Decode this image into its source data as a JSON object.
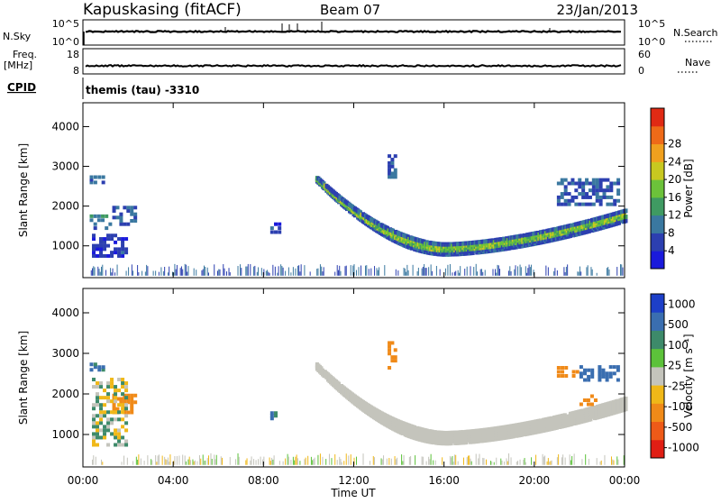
{
  "header": {
    "station": "Kapuskasing (fitACF)",
    "beam": "Beam 07",
    "date": "23/Jan/2013"
  },
  "top_panels": {
    "nsky_label": "N.Sky",
    "nsky_ticks": [
      "10^5",
      "10^0"
    ],
    "nsearch_label": "N.Search",
    "nsearch_ticks": [
      "10^5",
      "10^0"
    ],
    "freq_label": "Freq.",
    "freq_unit": "[MHz]",
    "freq_ticks": [
      "18",
      "8"
    ],
    "nave_label": "Nave",
    "nave_ticks": [
      "60",
      "0"
    ],
    "cpid_label": "CPID",
    "cpid_value": "themis (tau) -3310"
  },
  "chart_data": [
    {
      "type": "heatmap",
      "name": "power",
      "ylabel": "Slant Range [km]",
      "y_ticks": [
        1000,
        2000,
        3000,
        4000
      ],
      "ylim": [
        200,
        4600
      ],
      "xlim": [
        0,
        24
      ],
      "x_ticks": [
        "00:00",
        "04:00",
        "08:00",
        "12:00",
        "16:00",
        "20:00",
        "00:00"
      ],
      "colorbar_label": "Power [dB]",
      "colorbar_ticks": [
        "4",
        "8",
        "12",
        "16",
        "20",
        "24",
        "28"
      ],
      "colorbar_colors": [
        "#1a1adc",
        "#2c3fb0",
        "#3a78a0",
        "#3f9a62",
        "#6cc23a",
        "#c8c820",
        "#f0a01e",
        "#ee6a18",
        "#e02a14"
      ],
      "features": [
        {
          "kind": "ground_band",
          "x": [
            0.3,
            24
          ],
          "y": [
            250,
            330
          ],
          "value": 6
        },
        {
          "kind": "arc",
          "x": [
            10.3,
            24
          ],
          "y_start": 2650,
          "y_min": 900,
          "x_min": 16,
          "y_end": 1750,
          "value": 16
        },
        {
          "kind": "patch",
          "x": [
            0.3,
            1.3
          ],
          "y": [
            1400,
            1800
          ],
          "value": 10
        },
        {
          "kind": "patch",
          "x": [
            0.3,
            1.0
          ],
          "y": [
            2550,
            2750
          ],
          "value": 8
        },
        {
          "kind": "patch",
          "x": [
            1.3,
            2.4
          ],
          "y": [
            1500,
            2000
          ],
          "value": 8
        },
        {
          "kind": "patch",
          "x": [
            0.4,
            2.0
          ],
          "y": [
            700,
            1300
          ],
          "value": 6
        },
        {
          "kind": "patch",
          "x": [
            13.5,
            13.9
          ],
          "y": [
            2600,
            3300
          ],
          "value": 8
        },
        {
          "kind": "patch",
          "x": [
            21,
            23.8
          ],
          "y": [
            2000,
            2700
          ],
          "value": 8
        },
        {
          "kind": "patch",
          "x": [
            8.3,
            8.8
          ],
          "y": [
            1300,
            1600
          ],
          "value": 6
        }
      ]
    },
    {
      "type": "heatmap",
      "name": "velocity",
      "ylabel": "Slant Range [km]",
      "y_ticks": [
        1000,
        2000,
        3000,
        4000
      ],
      "ylim": [
        200,
        4600
      ],
      "xlim": [
        0,
        24
      ],
      "x_ticks": [
        "00:00",
        "04:00",
        "08:00",
        "12:00",
        "16:00",
        "20:00",
        "00:00"
      ],
      "xlabel": "Time UT",
      "colorbar_label": "Velocity [m s⁻¹]",
      "colorbar_ticks": [
        "1000",
        "500",
        "100",
        "25",
        "-25",
        "-100",
        "-500",
        "-1000"
      ],
      "colorbar_colors": [
        "#1d3fc8",
        "#3a6eb0",
        "#3d8a6a",
        "#5cc23a",
        "#c4c4bc",
        "#f0b818",
        "#f08a18",
        "#ee5a18",
        "#e01e14"
      ],
      "features": [
        {
          "kind": "ground_band",
          "x": [
            0.3,
            24
          ],
          "y": [
            250,
            330
          ],
          "value": 0
        },
        {
          "kind": "arc",
          "x": [
            10.3,
            24
          ],
          "y_start": 2650,
          "y_min": 900,
          "x_min": 16,
          "y_end": 1750,
          "value": 0
        },
        {
          "kind": "patch",
          "x": [
            1.3,
            2.4
          ],
          "y": [
            1500,
            2000
          ],
          "value": -300
        },
        {
          "kind": "patch",
          "x": [
            0.3,
            1.0
          ],
          "y": [
            2550,
            2750
          ],
          "value": 150
        },
        {
          "kind": "patch",
          "x": [
            0.4,
            2.0
          ],
          "y": [
            700,
            2400
          ],
          "value": 0
        },
        {
          "kind": "patch",
          "x": [
            8.3,
            8.8
          ],
          "y": [
            1350,
            1550
          ],
          "value": 120
        },
        {
          "kind": "patch",
          "x": [
            13.5,
            13.9
          ],
          "y": [
            2600,
            3300
          ],
          "value": -200
        },
        {
          "kind": "patch",
          "x": [
            21,
            22
          ],
          "y": [
            2400,
            2700
          ],
          "value": -400
        },
        {
          "kind": "patch",
          "x": [
            22,
            23.8
          ],
          "y": [
            2300,
            2700
          ],
          "value": 200
        },
        {
          "kind": "patch",
          "x": [
            22,
            22.8
          ],
          "y": [
            1700,
            2000
          ],
          "value": -400
        }
      ]
    }
  ]
}
